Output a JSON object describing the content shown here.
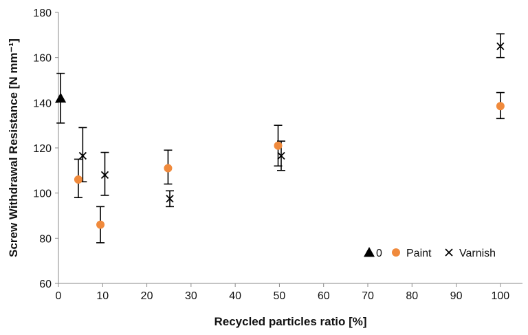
{
  "chart_data": {
    "type": "scatter",
    "title": "",
    "xlabel": "Recycled particles ratio [%]",
    "ylabel": "Screw Withdrawal Resistance [N mm⁻¹]",
    "xlim": [
      0,
      105
    ],
    "ylim": [
      60,
      180
    ],
    "xticks": [
      0,
      10,
      20,
      30,
      40,
      50,
      60,
      70,
      80,
      90,
      100
    ],
    "yticks": [
      60,
      80,
      100,
      120,
      140,
      160,
      180
    ],
    "grid": false,
    "legend_position": "bottom-right",
    "series": [
      {
        "name": "0",
        "marker": "triangle",
        "color": "#000000",
        "points": [
          {
            "x": 0.5,
            "y": 142,
            "err_low": 131,
            "err_high": 153
          }
        ]
      },
      {
        "name": "Paint",
        "marker": "circle",
        "color": "#f08a3c",
        "points": [
          {
            "x": 4.5,
            "y": 106,
            "err_low": 98,
            "err_high": 115
          },
          {
            "x": 9.5,
            "y": 86,
            "err_low": 78,
            "err_high": 94
          },
          {
            "x": 24.8,
            "y": 111,
            "err_low": 104,
            "err_high": 119
          },
          {
            "x": 49.7,
            "y": 121,
            "err_low": 112,
            "err_high": 130
          },
          {
            "x": 100,
            "y": 138.5,
            "err_low": 133,
            "err_high": 144.5
          }
        ]
      },
      {
        "name": "Varnish",
        "marker": "x",
        "color": "#000000",
        "points": [
          {
            "x": 5.5,
            "y": 116.5,
            "err_low": 105,
            "err_high": 129
          },
          {
            "x": 10.5,
            "y": 108,
            "err_low": 99,
            "err_high": 118
          },
          {
            "x": 25.2,
            "y": 97.5,
            "err_low": 94,
            "err_high": 101
          },
          {
            "x": 50.4,
            "y": 116.5,
            "err_low": 110,
            "err_high": 123
          },
          {
            "x": 100,
            "y": 165,
            "err_low": 160,
            "err_high": 170.5
          }
        ]
      }
    ]
  }
}
